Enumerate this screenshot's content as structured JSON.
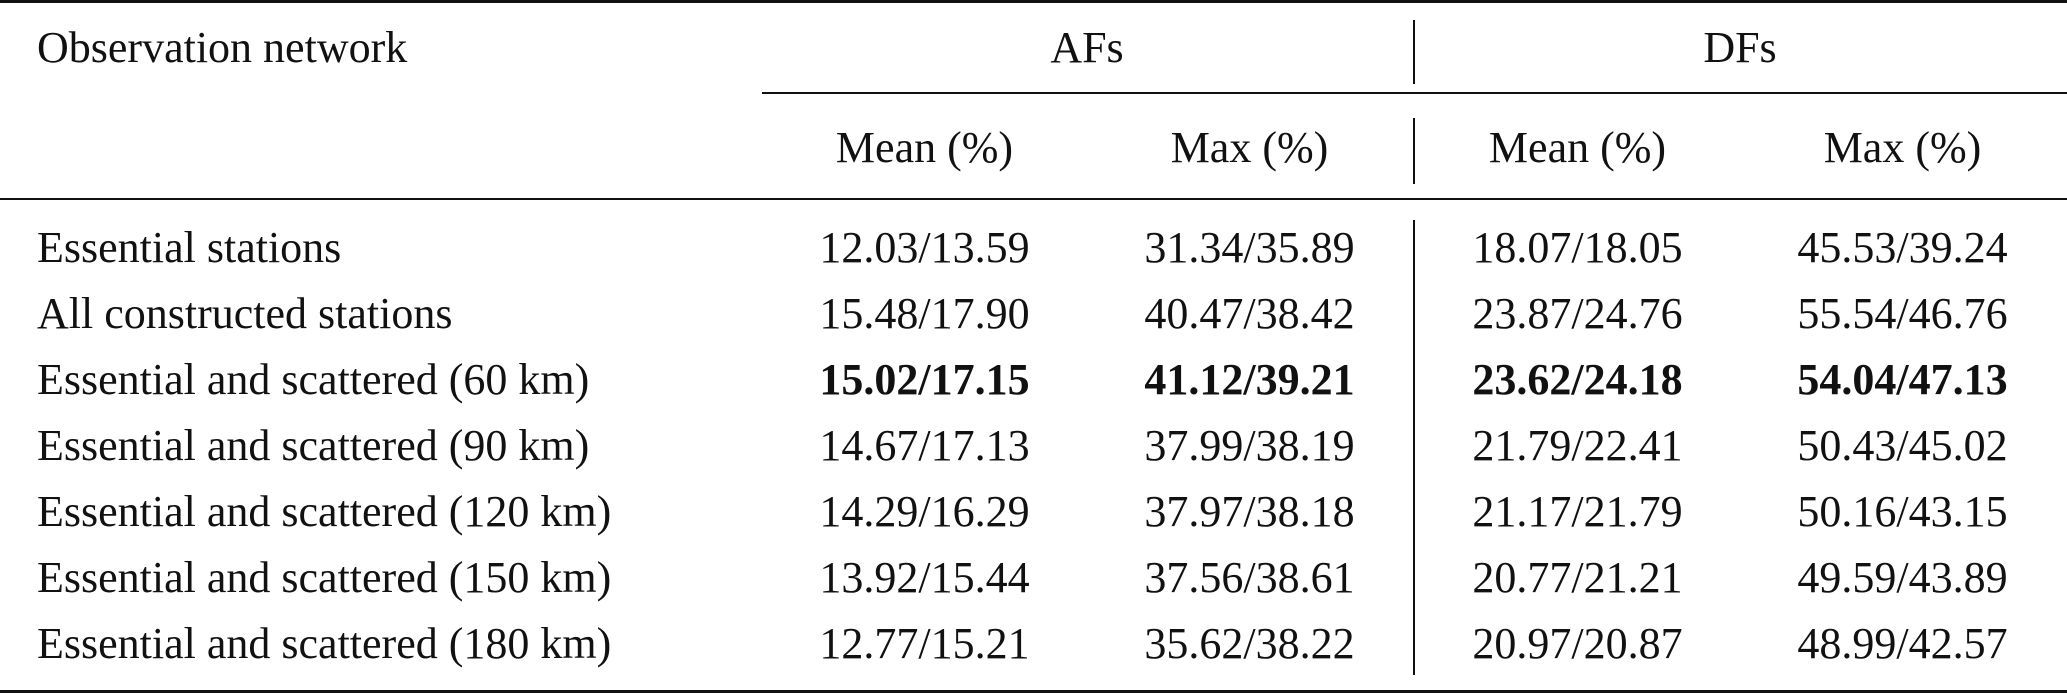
{
  "table": {
    "header": {
      "row_label": "Observation network",
      "groups": [
        "AFs",
        "DFs"
      ],
      "subcolumns": [
        "Mean (%)",
        "Max (%)",
        "Mean (%)",
        "Max (%)"
      ]
    },
    "rows": [
      {
        "label": "Essential stations",
        "cells": [
          "12.03/13.59",
          "31.34/35.89",
          "18.07/18.05",
          "45.53/39.24"
        ],
        "bold": false
      },
      {
        "label": "All constructed stations",
        "cells": [
          "15.48/17.90",
          "40.47/38.42",
          "23.87/24.76",
          "55.54/46.76"
        ],
        "bold": false
      },
      {
        "label": "Essential and scattered (60 km)",
        "cells": [
          "15.02/17.15",
          "41.12/39.21",
          "23.62/24.18",
          "54.04/47.13"
        ],
        "bold": true
      },
      {
        "label": "Essential and scattered (90 km)",
        "cells": [
          "14.67/17.13",
          "37.99/38.19",
          "21.79/22.41",
          "50.43/45.02"
        ],
        "bold": false
      },
      {
        "label": "Essential and scattered (120 km)",
        "cells": [
          "14.29/16.29",
          "37.97/38.18",
          "21.17/21.79",
          "50.16/43.15"
        ],
        "bold": false
      },
      {
        "label": "Essential and scattered (150 km)",
        "cells": [
          "13.92/15.44",
          "37.56/38.61",
          "20.77/21.21",
          "49.59/43.89"
        ],
        "bold": false
      },
      {
        "label": "Essential and scattered (180 km)",
        "cells": [
          "12.77/15.21",
          "35.62/38.22",
          "20.97/20.87",
          "48.99/42.57"
        ],
        "bold": false
      }
    ]
  }
}
